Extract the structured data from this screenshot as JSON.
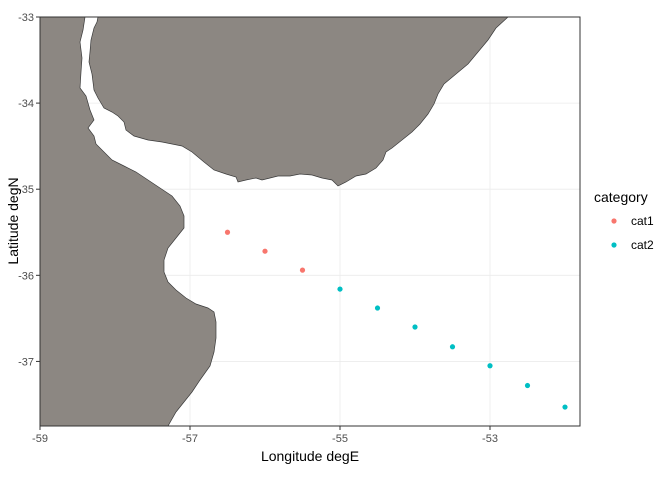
{
  "chart_data": {
    "type": "scatter",
    "xlabel": "Longitude degE",
    "ylabel": "Latitude degN",
    "xlim": [
      -59,
      -51.8
    ],
    "ylim": [
      -37.75,
      -33
    ],
    "x_ticks": [
      {
        "value": -59,
        "label": "-59"
      },
      {
        "value": -57,
        "label": "-57"
      },
      {
        "value": -55,
        "label": "-55"
      },
      {
        "value": -53,
        "label": "-53"
      }
    ],
    "y_ticks": [
      {
        "value": -33,
        "label": "-33"
      },
      {
        "value": -34,
        "label": "-34"
      },
      {
        "value": -35,
        "label": "-35"
      },
      {
        "value": -36,
        "label": "-36"
      },
      {
        "value": -37,
        "label": "-37"
      }
    ],
    "grid": true,
    "legend": {
      "title": "category",
      "placement": "right",
      "entries": [
        {
          "label": "cat1",
          "color": "#F8766D"
        },
        {
          "label": "cat2",
          "color": "#00BFC4"
        }
      ]
    },
    "series": [
      {
        "name": "cat1",
        "color": "#F8766D",
        "points": [
          [
            -56.5,
            -35.5
          ],
          [
            -56.0,
            -35.72
          ],
          [
            -55.5,
            -35.94
          ]
        ]
      },
      {
        "name": "cat2",
        "color": "#00BFC4",
        "points": [
          [
            -55.0,
            -36.16
          ],
          [
            -54.5,
            -36.38
          ],
          [
            -54.0,
            -36.6
          ],
          [
            -53.5,
            -36.83
          ],
          [
            -53.0,
            -37.05
          ],
          [
            -52.5,
            -37.28
          ],
          [
            -52.0,
            -37.53
          ]
        ]
      }
    ],
    "land_color": "#8C8782"
  }
}
